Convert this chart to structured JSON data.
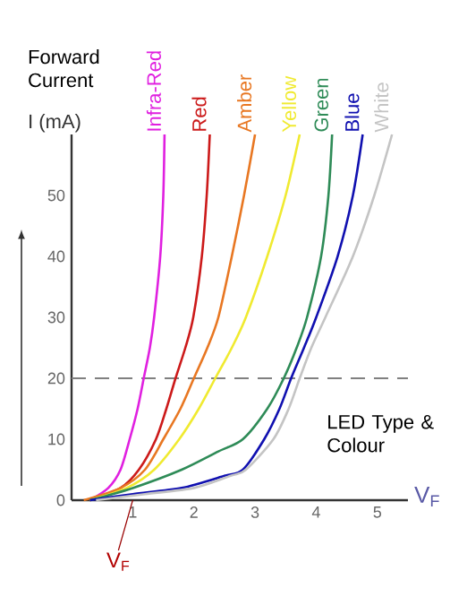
{
  "chart_data": {
    "type": "line",
    "title": "Forward Current",
    "ylabel": "I (mA)",
    "xlabel": "V$_{F}$",
    "xlim": [
      0,
      5.5
    ],
    "ylim": [
      0,
      60
    ],
    "xticks": [
      1,
      2,
      3,
      4,
      5
    ],
    "yticks": [
      0,
      10,
      20,
      30,
      40,
      50
    ],
    "grid": false,
    "marker": "none",
    "line_style": "solid",
    "ref_lines": [
      {
        "axis": "y",
        "value": 20,
        "color": "#808080",
        "line_style": "dashed"
      }
    ],
    "annotations": [
      "LED Type & Colour",
      {
        "text": "V$_{F}$",
        "x": 1,
        "y": 0
      }
    ],
    "series": [
      {
        "name": "Infra-Red",
        "color": "#e020e0",
        "x": [
          0.3,
          0.6,
          0.8,
          0.95,
          1.08,
          1.18,
          1.28,
          1.35,
          1.45,
          1.5,
          1.52
        ],
        "values": [
          0,
          2,
          5,
          10,
          15,
          20,
          25,
          30,
          40,
          50,
          60
        ]
      },
      {
        "name": "Red",
        "color": "#cc1a1a",
        "x": [
          0.3,
          0.8,
          1.1,
          1.38,
          1.55,
          1.7,
          1.86,
          1.99,
          2.13,
          2.21,
          2.26
        ],
        "values": [
          0,
          2,
          5,
          10,
          15,
          20,
          25,
          30,
          40,
          50,
          60
        ]
      },
      {
        "name": "Amber",
        "color": "#e87722",
        "x": [
          0.2,
          0.8,
          1.2,
          1.5,
          1.78,
          2.0,
          2.22,
          2.4,
          2.62,
          2.82,
          3.0
        ],
        "values": [
          0,
          2,
          5,
          10,
          15,
          20,
          25,
          30,
          40,
          50,
          60
        ]
      },
      {
        "name": "Yellow",
        "color": "#f0ea30",
        "x": [
          0.3,
          0.9,
          1.35,
          1.76,
          2.08,
          2.35,
          2.62,
          2.85,
          3.2,
          3.5,
          3.73
        ],
        "values": [
          0,
          2,
          5,
          10,
          15,
          20,
          25,
          30,
          40,
          50,
          60
        ]
      },
      {
        "name": "Green",
        "color": "#2e8b57",
        "x": [
          0.3,
          1.0,
          1.8,
          2.4,
          2.8,
          3.2,
          3.47,
          3.68,
          3.85,
          4.08,
          4.2,
          4.26
        ],
        "values": [
          0,
          2,
          5,
          8,
          10,
          15,
          20,
          25,
          30,
          40,
          50,
          60
        ]
      },
      {
        "name": "Blue",
        "color": "#1010b0",
        "x": [
          0.3,
          1.0,
          1.8,
          2.5,
          2.8,
          3.15,
          3.4,
          3.59,
          3.8,
          4.0,
          4.35,
          4.6,
          4.76
        ],
        "values": [
          0,
          1,
          2,
          4,
          5,
          10,
          15,
          20,
          25,
          30,
          40,
          50,
          60
        ]
      },
      {
        "name": "White",
        "color": "#c4c4c4",
        "x": [
          0.4,
          1.2,
          2.0,
          2.6,
          2.85,
          3.3,
          3.55,
          3.73,
          3.92,
          4.15,
          4.6,
          4.95,
          5.24
        ],
        "values": [
          0,
          1,
          2,
          4,
          5,
          10,
          15,
          20,
          25,
          30,
          40,
          50,
          60
        ]
      }
    ]
  }
}
